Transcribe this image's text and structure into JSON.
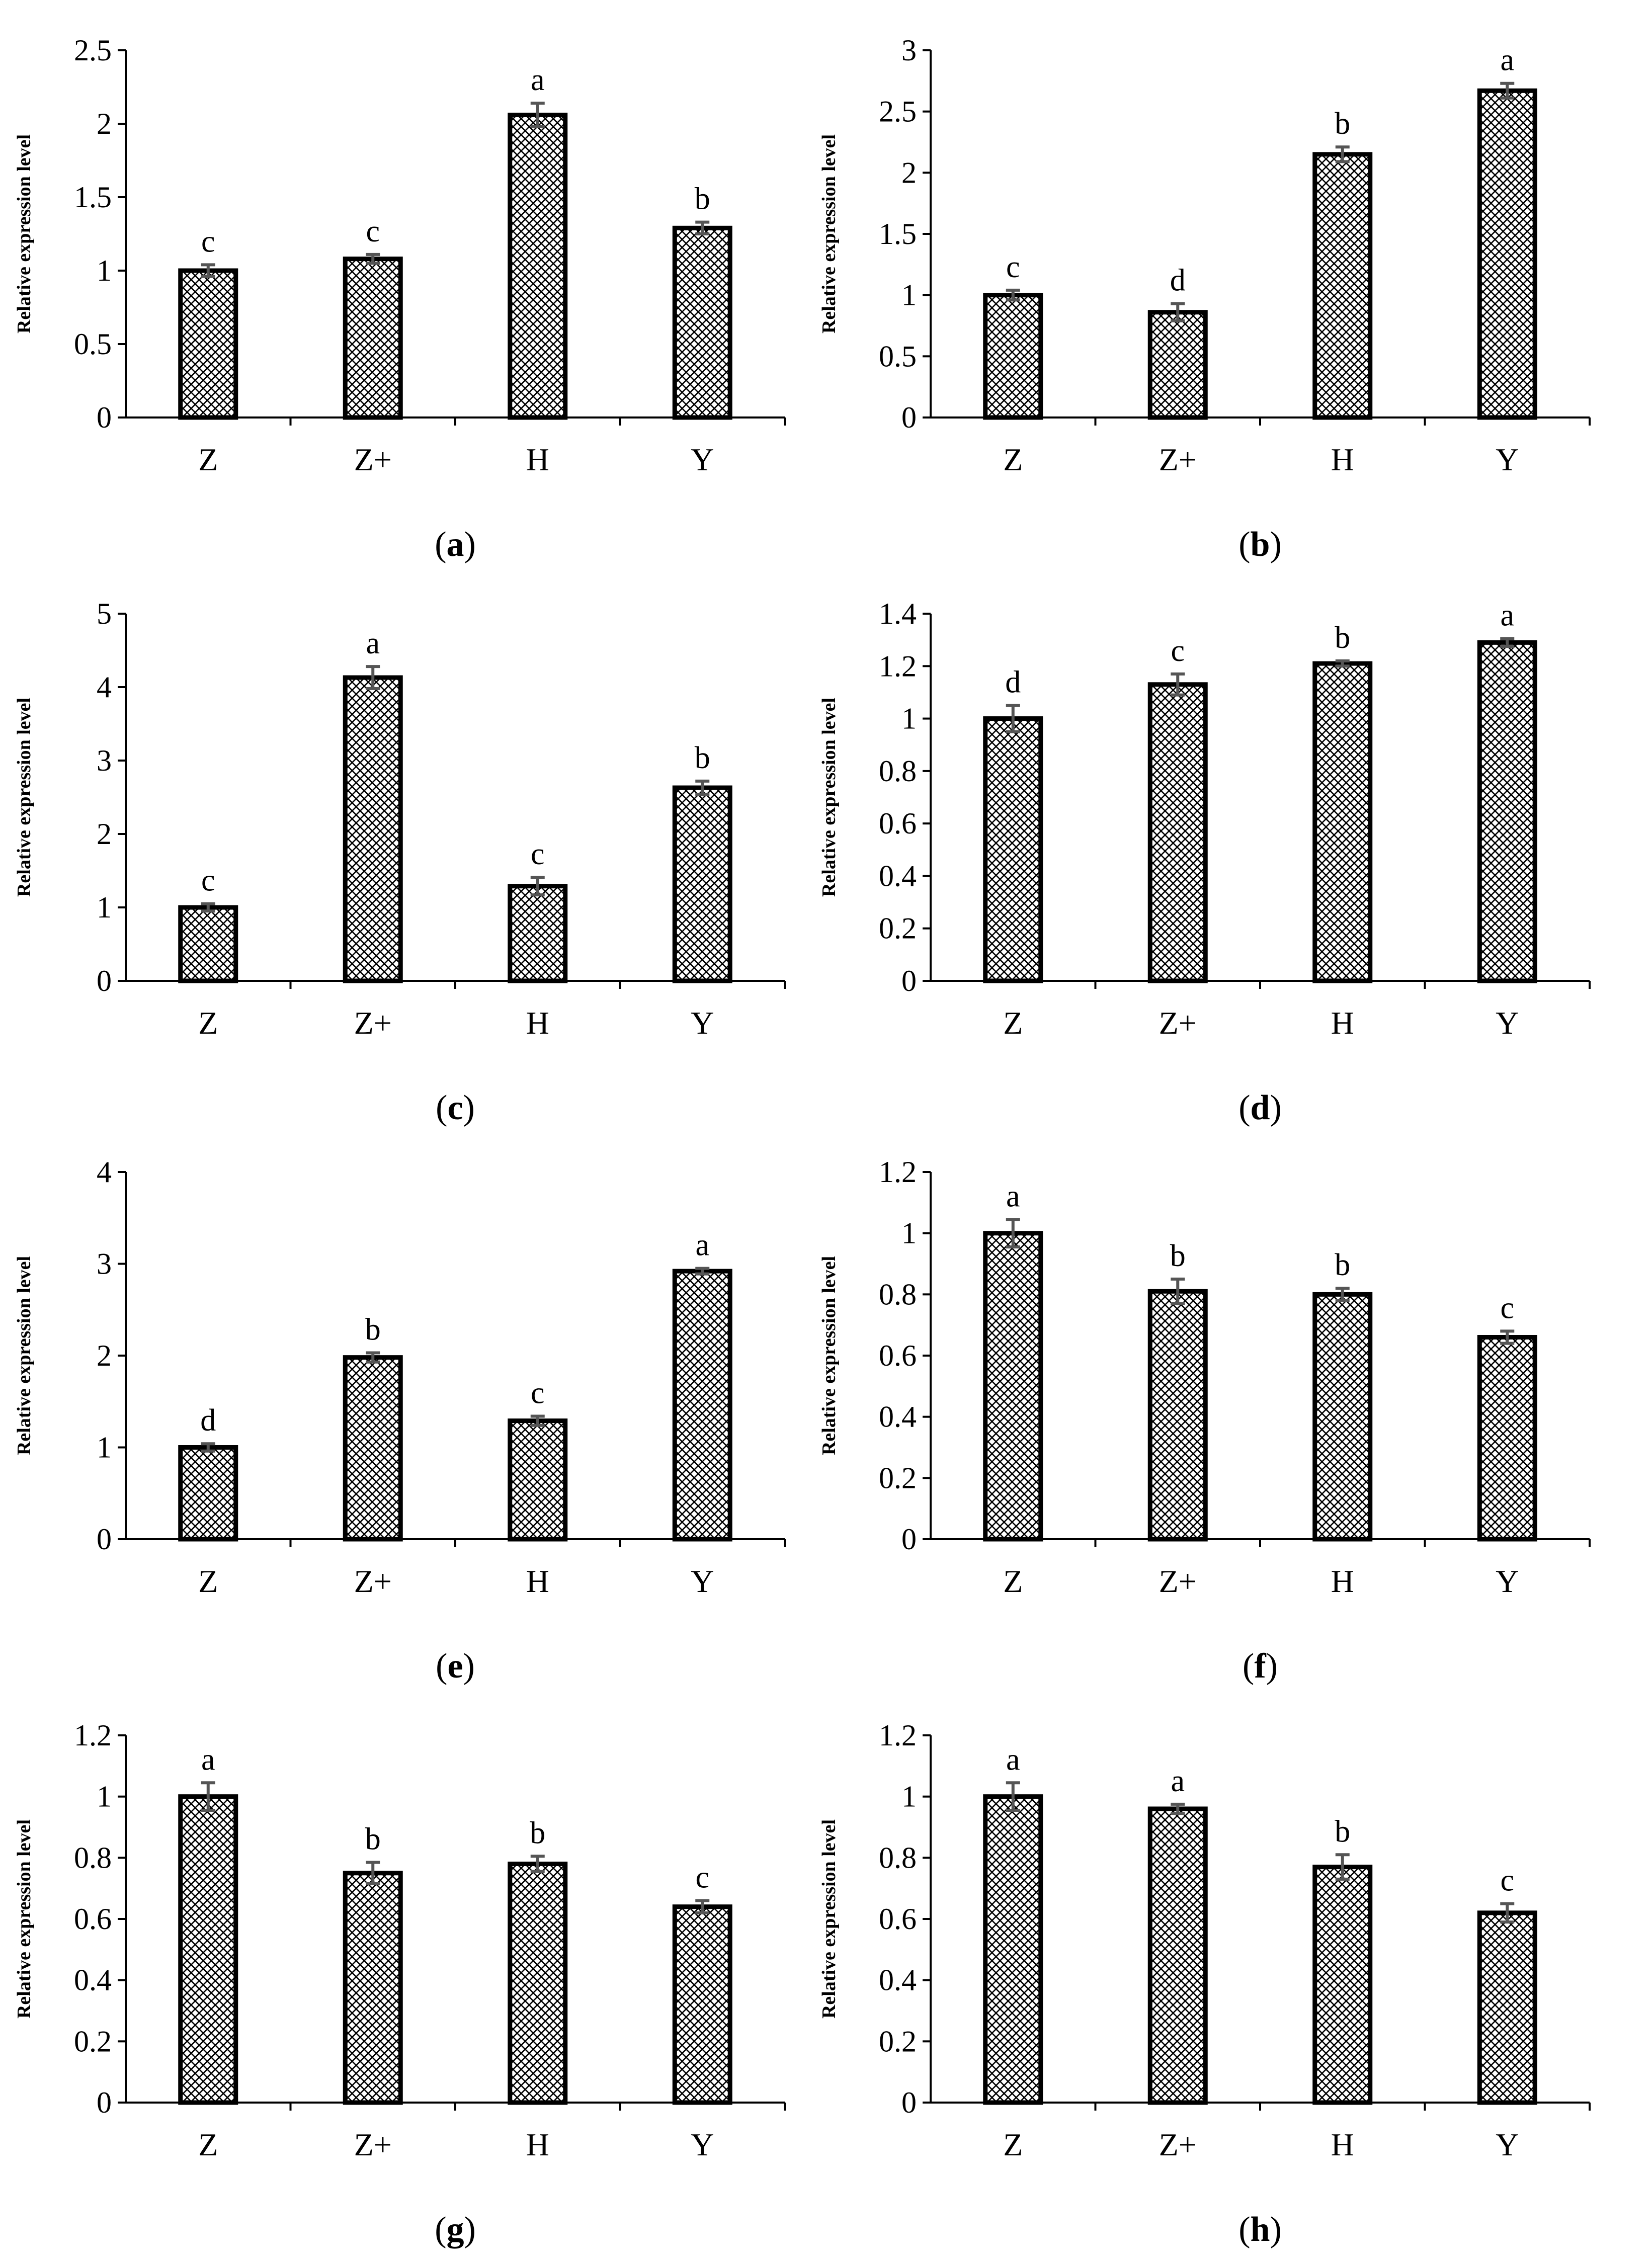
{
  "colors": {
    "axis": "#000000",
    "bar_outline": "#000000",
    "bar_hatch": "#000000",
    "error_bar": "#555555",
    "background": "#ffffff"
  },
  "chart_data": [
    {
      "panel": "a",
      "type": "bar",
      "caption_letter": "a",
      "ylabel": "Relative expression level",
      "xlabel": "",
      "categories": [
        "Z",
        "Z+",
        "H",
        "Y"
      ],
      "values": [
        1.0,
        1.08,
        2.06,
        1.29
      ],
      "errors": [
        0.04,
        0.03,
        0.08,
        0.04
      ],
      "significance": [
        "c",
        "c",
        "a",
        "b"
      ],
      "ylim": [
        0,
        2.5
      ],
      "yticks": [
        0,
        0.5,
        1,
        1.5,
        2,
        2.5
      ],
      "yticklabels": [
        "0",
        "0.5",
        "1",
        "1.5",
        "2",
        "2.5"
      ]
    },
    {
      "panel": "b",
      "type": "bar",
      "caption_letter": "b",
      "ylabel": "Relative expression level",
      "xlabel": "",
      "categories": [
        "Z",
        "Z+",
        "H",
        "Y"
      ],
      "values": [
        1.0,
        0.86,
        2.15,
        2.67
      ],
      "errors": [
        0.04,
        0.07,
        0.06,
        0.06
      ],
      "significance": [
        "c",
        "d",
        "b",
        "a"
      ],
      "ylim": [
        0,
        3
      ],
      "yticks": [
        0,
        0.5,
        1,
        1.5,
        2,
        2.5,
        3
      ],
      "yticklabels": [
        "0",
        "0.5",
        "1",
        "1.5",
        "2",
        "2.5",
        "3"
      ]
    },
    {
      "panel": "c",
      "type": "bar",
      "caption_letter": "c",
      "ylabel": "Relative expression level",
      "xlabel": "",
      "categories": [
        "Z",
        "Z+",
        "H",
        "Y"
      ],
      "values": [
        1.0,
        4.13,
        1.29,
        2.63
      ],
      "errors": [
        0.05,
        0.15,
        0.12,
        0.09
      ],
      "significance": [
        "c",
        "a",
        "c",
        "b"
      ],
      "ylim": [
        0,
        5
      ],
      "yticks": [
        0,
        1,
        2,
        3,
        4,
        5
      ],
      "yticklabels": [
        "0",
        "1",
        "2",
        "3",
        "4",
        "5"
      ]
    },
    {
      "panel": "d",
      "type": "bar",
      "caption_letter": "d",
      "ylabel": "Relative expression level",
      "xlabel": "",
      "categories": [
        "Z",
        "Z+",
        "H",
        "Y"
      ],
      "values": [
        1.0,
        1.13,
        1.21,
        1.29
      ],
      "errors": [
        0.05,
        0.04,
        0.01,
        0.015
      ],
      "significance": [
        "d",
        "c",
        "b",
        "a"
      ],
      "ylim": [
        0,
        1.4
      ],
      "yticks": [
        0,
        0.2,
        0.4,
        0.6,
        0.8,
        1,
        1.2,
        1.4
      ],
      "yticklabels": [
        "0",
        "0.2",
        "0.4",
        "0.6",
        "0.8",
        "1",
        "1.2",
        "1.4"
      ]
    },
    {
      "panel": "e",
      "type": "bar",
      "caption_letter": "e",
      "ylabel": "Relative expression level",
      "xlabel": "",
      "categories": [
        "Z",
        "Z+",
        "H",
        "Y"
      ],
      "values": [
        1.0,
        1.98,
        1.29,
        2.92
      ],
      "errors": [
        0.04,
        0.05,
        0.05,
        0.03
      ],
      "significance": [
        "d",
        "b",
        "c",
        "a"
      ],
      "ylim": [
        0,
        4
      ],
      "yticks": [
        0,
        1,
        2,
        3,
        4
      ],
      "yticklabels": [
        "0",
        "1",
        "2",
        "3",
        "4"
      ]
    },
    {
      "panel": "f",
      "type": "bar",
      "caption_letter": "f",
      "ylabel": "Relative expression level",
      "xlabel": "",
      "categories": [
        "Z",
        "Z+",
        "H",
        "Y"
      ],
      "values": [
        1.0,
        0.81,
        0.8,
        0.66
      ],
      "errors": [
        0.045,
        0.04,
        0.02,
        0.02
      ],
      "significance": [
        "a",
        "b",
        "b",
        "c"
      ],
      "ylim": [
        0,
        1.2
      ],
      "yticks": [
        0,
        0.2,
        0.4,
        0.6,
        0.8,
        1,
        1.2
      ],
      "yticklabels": [
        "0",
        "0.2",
        "0.4",
        "0.6",
        "0.8",
        "1",
        "1.2"
      ]
    },
    {
      "panel": "g",
      "type": "bar",
      "caption_letter": "g",
      "ylabel": "Relative expression level",
      "xlabel": "",
      "categories": [
        "Z",
        "Z+",
        "H",
        "Y"
      ],
      "values": [
        1.0,
        0.75,
        0.78,
        0.64
      ],
      "errors": [
        0.045,
        0.035,
        0.025,
        0.02
      ],
      "significance": [
        "a",
        "b",
        "b",
        "c"
      ],
      "ylim": [
        0,
        1.2
      ],
      "yticks": [
        0,
        0.2,
        0.4,
        0.6,
        0.8,
        1,
        1.2
      ],
      "yticklabels": [
        "0",
        "0.2",
        "0.4",
        "0.6",
        "0.8",
        "1",
        "1.2"
      ]
    },
    {
      "panel": "h",
      "type": "bar",
      "caption_letter": "h",
      "ylabel": "Relative expression level",
      "xlabel": "",
      "categories": [
        "Z",
        "Z+",
        "H",
        "Y"
      ],
      "values": [
        1.0,
        0.96,
        0.77,
        0.62
      ],
      "errors": [
        0.045,
        0.015,
        0.04,
        0.03
      ],
      "significance": [
        "a",
        "a",
        "b",
        "c"
      ],
      "ylim": [
        0,
        1.2
      ],
      "yticks": [
        0,
        0.2,
        0.4,
        0.6,
        0.8,
        1,
        1.2
      ],
      "yticklabels": [
        "0",
        "0.2",
        "0.4",
        "0.6",
        "0.8",
        "1",
        "1.2"
      ]
    }
  ]
}
